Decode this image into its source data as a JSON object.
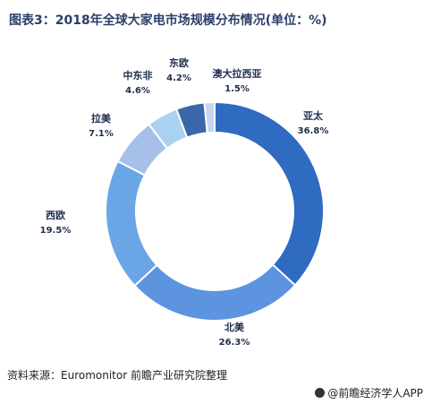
{
  "title": "图表3：2018年全球大家电市场规模分布情况(单位：%)",
  "source": "资料来源：Euromonitor 前瞻产业研究院整理",
  "brand": "@前瞻经济学人APP",
  "chart_data": {
    "type": "pie",
    "donut": true,
    "categories": [
      "亚太",
      "北美",
      "西欧",
      "拉美",
      "中东非",
      "东欧",
      "澳大拉西亚"
    ],
    "values": [
      36.8,
      26.3,
      19.5,
      7.1,
      4.6,
      4.2,
      1.5
    ],
    "labels": [
      "36.8%",
      "26.3%",
      "19.5%",
      "7.1%",
      "4.6%",
      "4.2%",
      "1.5%"
    ],
    "colors": [
      "#2e6bc1",
      "#5c94df",
      "#6aa6e6",
      "#a6c0ea",
      "#a9d2f0",
      "#3a67a8",
      "#c7d6ef"
    ],
    "legend": "none"
  }
}
